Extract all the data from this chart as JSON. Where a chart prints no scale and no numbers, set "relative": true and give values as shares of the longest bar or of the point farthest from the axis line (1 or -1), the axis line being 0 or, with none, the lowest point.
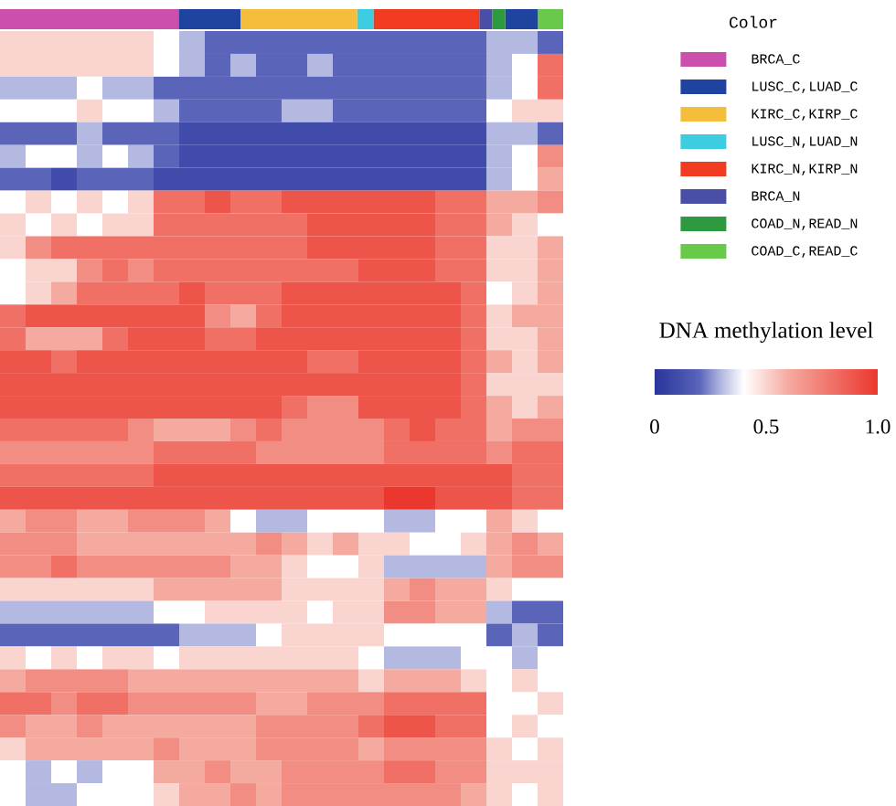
{
  "chart_data": [
    {
      "type": "bar",
      "orientation": "horizontal",
      "stacked": true,
      "relative": true,
      "categories": [
        null
      ],
      "legend": "right",
      "legend_title": "Color",
      "series": [
        {
          "name": "BRCA_C",
          "color": "#cc4fae",
          "values": [
            0.317
          ]
        },
        {
          "name": "LUSC_C,LUAD_C",
          "color": "#1f44a0",
          "values": [
            0.11
          ]
        },
        {
          "name": "KIRC_C,KIRP_C",
          "color": "#f4be3c",
          "values": [
            0.207
          ]
        },
        {
          "name": "LUSC_N,LUAD_N",
          "color": "#3ccde0",
          "values": [
            0.029
          ]
        },
        {
          "name": "KIRC_N,KIRP_N",
          "color": "#f23c22",
          "values": [
            0.188
          ]
        },
        {
          "name": "BRCA_N",
          "color": "#4b4ea6",
          "values": [
            0.023
          ]
        },
        {
          "name": "COAD_N,READ_N",
          "color": "#2e9a40",
          "values": [
            0.023
          ]
        },
        {
          "color": "#1f44a0",
          "values": [
            0.058
          ]
        },
        {
          "name": "COAD_C,READ_C",
          "color": "#68c94a",
          "values": [
            0.045
          ]
        }
      ]
    },
    {
      "type": "heatmap",
      "clim": [
        0,
        1
      ],
      "cticks": [
        0,
        0.5,
        {
          "value": 1,
          "label": "1.0"
        }
      ],
      "clabel": "DNA methylation level",
      "categories": [
        null,
        null,
        null,
        null,
        null,
        null,
        null,
        null,
        null,
        null,
        null,
        null,
        null,
        null,
        null,
        null,
        null,
        null,
        null,
        null,
        null,
        null
      ],
      "y_categories": [
        null,
        null,
        null,
        null,
        null,
        null,
        null,
        null,
        null,
        null,
        null,
        null,
        null,
        null,
        null,
        null,
        null,
        null,
        null,
        null,
        null,
        null,
        null,
        null,
        null,
        null,
        null,
        null,
        null,
        null,
        null,
        null,
        null,
        null
      ],
      "cells": [
        [
          0.5,
          0.5,
          0.5,
          0.5,
          0.5,
          0.5,
          0.4,
          0.3,
          0.2,
          0.2,
          0.2,
          0.2,
          0.2,
          0.2,
          0.2,
          0.2,
          0.2,
          0.2,
          0.2,
          0.3,
          0.3,
          0.2
        ],
        [
          0.5,
          0.5,
          0.5,
          0.5,
          0.5,
          0.5,
          0.4,
          0.3,
          0.2,
          0.3,
          0.2,
          0.2,
          0.3,
          0.2,
          0.2,
          0.2,
          0.2,
          0.2,
          0.2,
          0.3,
          0.4,
          0.8
        ],
        [
          0.3,
          0.3,
          0.3,
          0.4,
          0.3,
          0.3,
          0.2,
          0.2,
          0.2,
          0.2,
          0.2,
          0.2,
          0.2,
          0.2,
          0.2,
          0.2,
          0.2,
          0.2,
          0.2,
          0.3,
          0.4,
          0.8
        ],
        [
          0.4,
          0.4,
          0.4,
          0.5,
          0.4,
          0.4,
          0.3,
          0.2,
          0.2,
          0.2,
          0.2,
          0.3,
          0.3,
          0.2,
          0.2,
          0.2,
          0.2,
          0.2,
          0.2,
          0.4,
          0.5,
          0.5
        ],
        [
          0.2,
          0.2,
          0.2,
          0.3,
          0.2,
          0.2,
          0.2,
          0.1,
          0.1,
          0.1,
          0.1,
          0.1,
          0.1,
          0.1,
          0.1,
          0.1,
          0.1,
          0.1,
          0.1,
          0.3,
          0.3,
          0.2
        ],
        [
          0.3,
          0.4,
          0.4,
          0.3,
          0.4,
          0.3,
          0.2,
          0.1,
          0.1,
          0.1,
          0.1,
          0.1,
          0.1,
          0.1,
          0.1,
          0.1,
          0.1,
          0.1,
          0.1,
          0.3,
          0.4,
          0.7
        ],
        [
          0.2,
          0.2,
          0.1,
          0.2,
          0.2,
          0.2,
          0.1,
          0.1,
          0.1,
          0.1,
          0.1,
          0.1,
          0.1,
          0.1,
          0.1,
          0.1,
          0.1,
          0.1,
          0.1,
          0.3,
          0.4,
          0.6
        ],
        [
          0.4,
          0.5,
          0.4,
          0.5,
          0.4,
          0.5,
          0.8,
          0.8,
          0.9,
          0.8,
          0.8,
          0.9,
          0.9,
          0.9,
          0.9,
          0.9,
          0.9,
          0.8,
          0.8,
          0.6,
          0.6,
          0.7
        ],
        [
          0.5,
          0.4,
          0.5,
          0.4,
          0.5,
          0.5,
          0.8,
          0.8,
          0.8,
          0.8,
          0.8,
          0.8,
          0.9,
          0.9,
          0.9,
          0.9,
          0.9,
          0.8,
          0.8,
          0.6,
          0.5,
          0.4
        ],
        [
          0.5,
          0.7,
          0.8,
          0.8,
          0.8,
          0.8,
          0.8,
          0.8,
          0.8,
          0.8,
          0.8,
          0.8,
          0.9,
          0.9,
          0.9,
          0.9,
          0.9,
          0.8,
          0.8,
          0.5,
          0.5,
          0.6
        ],
        [
          0.4,
          0.5,
          0.5,
          0.7,
          0.8,
          0.7,
          0.8,
          0.8,
          0.8,
          0.8,
          0.8,
          0.8,
          0.8,
          0.8,
          0.9,
          0.9,
          0.9,
          0.8,
          0.8,
          0.5,
          0.5,
          0.6
        ],
        [
          0.4,
          0.5,
          0.6,
          0.8,
          0.8,
          0.8,
          0.8,
          0.9,
          0.8,
          0.8,
          0.8,
          0.9,
          0.9,
          0.9,
          0.9,
          0.9,
          0.9,
          0.9,
          0.8,
          0.4,
          0.5,
          0.6
        ],
        [
          0.8,
          0.9,
          0.9,
          0.9,
          0.9,
          0.9,
          0.9,
          0.9,
          0.7,
          0.6,
          0.8,
          0.9,
          0.9,
          0.9,
          0.9,
          0.9,
          0.9,
          0.9,
          0.8,
          0.5,
          0.6,
          0.6
        ],
        [
          0.8,
          0.6,
          0.6,
          0.6,
          0.8,
          0.9,
          0.9,
          0.9,
          0.8,
          0.8,
          0.9,
          0.9,
          0.9,
          0.9,
          0.9,
          0.9,
          0.9,
          0.9,
          0.8,
          0.5,
          0.5,
          0.6
        ],
        [
          0.9,
          0.9,
          0.8,
          0.9,
          0.9,
          0.9,
          0.9,
          0.9,
          0.9,
          0.9,
          0.9,
          0.9,
          0.8,
          0.8,
          0.9,
          0.9,
          0.9,
          0.9,
          0.8,
          0.6,
          0.5,
          0.6
        ],
        [
          0.9,
          0.9,
          0.9,
          0.9,
          0.9,
          0.9,
          0.9,
          0.9,
          0.9,
          0.9,
          0.9,
          0.9,
          0.9,
          0.9,
          0.9,
          0.9,
          0.9,
          0.9,
          0.8,
          0.5,
          0.5,
          0.5
        ],
        [
          0.9,
          0.9,
          0.9,
          0.9,
          0.9,
          0.9,
          0.9,
          0.9,
          0.9,
          0.9,
          0.9,
          0.8,
          0.7,
          0.7,
          0.9,
          0.9,
          0.9,
          0.9,
          0.8,
          0.6,
          0.5,
          0.6
        ],
        [
          0.8,
          0.8,
          0.8,
          0.8,
          0.8,
          0.7,
          0.6,
          0.6,
          0.6,
          0.7,
          0.8,
          0.7,
          0.7,
          0.7,
          0.7,
          0.8,
          0.9,
          0.8,
          0.8,
          0.6,
          0.7,
          0.7
        ],
        [
          0.7,
          0.7,
          0.7,
          0.7,
          0.7,
          0.7,
          0.8,
          0.8,
          0.8,
          0.8,
          0.7,
          0.7,
          0.7,
          0.7,
          0.7,
          0.8,
          0.8,
          0.8,
          0.8,
          0.7,
          0.8,
          0.8
        ],
        [
          0.8,
          0.8,
          0.8,
          0.8,
          0.8,
          0.8,
          0.9,
          0.9,
          0.9,
          0.9,
          0.9,
          0.9,
          0.9,
          0.9,
          0.9,
          0.9,
          0.9,
          0.9,
          0.9,
          0.9,
          0.8,
          0.8
        ],
        [
          0.9,
          0.9,
          0.9,
          0.9,
          0.9,
          0.9,
          0.9,
          0.9,
          0.9,
          0.9,
          0.9,
          0.9,
          0.9,
          0.9,
          0.9,
          1.0,
          1.0,
          0.9,
          0.9,
          0.9,
          0.8,
          0.8
        ],
        [
          0.6,
          0.7,
          0.7,
          0.6,
          0.6,
          0.7,
          0.7,
          0.7,
          0.6,
          0.4,
          0.3,
          0.3,
          0.4,
          0.4,
          0.4,
          0.3,
          0.3,
          0.4,
          0.4,
          0.6,
          0.5,
          0.4
        ],
        [
          0.7,
          0.7,
          0.7,
          0.6,
          0.6,
          0.6,
          0.6,
          0.6,
          0.6,
          0.6,
          0.7,
          0.6,
          0.5,
          0.6,
          0.5,
          0.5,
          0.4,
          0.4,
          0.5,
          0.6,
          0.7,
          0.6
        ],
        [
          0.7,
          0.7,
          0.8,
          0.7,
          0.7,
          0.7,
          0.7,
          0.7,
          0.7,
          0.6,
          0.6,
          0.5,
          0.4,
          0.4,
          0.5,
          0.3,
          0.3,
          0.3,
          0.3,
          0.6,
          0.7,
          0.7
        ],
        [
          0.5,
          0.5,
          0.5,
          0.5,
          0.5,
          0.5,
          0.6,
          0.6,
          0.6,
          0.6,
          0.6,
          0.5,
          0.5,
          0.5,
          0.5,
          0.6,
          0.7,
          0.6,
          0.6,
          0.5,
          0.4,
          0.4
        ],
        [
          0.3,
          0.3,
          0.3,
          0.3,
          0.3,
          0.3,
          0.4,
          0.4,
          0.5,
          0.5,
          0.5,
          0.5,
          0.4,
          0.5,
          0.5,
          0.7,
          0.7,
          0.6,
          0.6,
          0.3,
          0.2,
          0.2
        ],
        [
          0.2,
          0.2,
          0.2,
          0.2,
          0.2,
          0.2,
          0.2,
          0.3,
          0.3,
          0.3,
          0.4,
          0.5,
          0.5,
          0.5,
          0.5,
          0.4,
          0.4,
          0.4,
          0.4,
          0.2,
          0.3,
          0.2
        ],
        [
          0.5,
          0.4,
          0.5,
          0.4,
          0.5,
          0.5,
          0.4,
          0.5,
          0.5,
          0.5,
          0.5,
          0.5,
          0.5,
          0.5,
          0.4,
          0.3,
          0.3,
          0.3,
          0.4,
          0.4,
          0.3,
          0.4
        ],
        [
          0.6,
          0.7,
          0.7,
          0.7,
          0.7,
          0.6,
          0.6,
          0.6,
          0.6,
          0.6,
          0.6,
          0.6,
          0.6,
          0.6,
          0.5,
          0.6,
          0.6,
          0.6,
          0.5,
          0.4,
          0.5,
          0.4
        ],
        [
          0.8,
          0.8,
          0.7,
          0.8,
          0.8,
          0.7,
          0.7,
          0.7,
          0.7,
          0.7,
          0.6,
          0.6,
          0.7,
          0.7,
          0.7,
          0.8,
          0.8,
          0.8,
          0.8,
          0.4,
          0.4,
          0.5
        ],
        [
          0.7,
          0.6,
          0.6,
          0.7,
          0.6,
          0.6,
          0.6,
          0.6,
          0.6,
          0.6,
          0.7,
          0.7,
          0.7,
          0.7,
          0.8,
          0.9,
          0.9,
          0.8,
          0.8,
          0.4,
          0.5,
          0.4
        ],
        [
          0.5,
          0.6,
          0.6,
          0.6,
          0.6,
          0.6,
          0.7,
          0.6,
          0.6,
          0.6,
          0.7,
          0.7,
          0.7,
          0.7,
          0.6,
          0.7,
          0.7,
          0.7,
          0.7,
          0.5,
          0.4,
          0.5
        ],
        [
          0.4,
          0.3,
          0.4,
          0.3,
          0.4,
          0.4,
          0.6,
          0.6,
          0.7,
          0.6,
          0.6,
          0.7,
          0.7,
          0.7,
          0.7,
          0.8,
          0.8,
          0.7,
          0.7,
          0.5,
          0.5,
          0.5
        ],
        [
          0.4,
          0.3,
          0.3,
          0.4,
          0.4,
          0.4,
          0.5,
          0.6,
          0.6,
          0.7,
          0.6,
          0.7,
          0.7,
          0.7,
          0.7,
          0.7,
          0.7,
          0.7,
          0.6,
          0.5,
          0.4,
          0.5
        ]
      ]
    }
  ]
}
